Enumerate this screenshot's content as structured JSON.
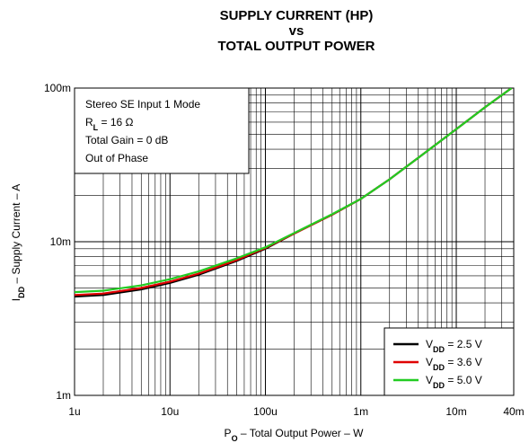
{
  "chart_data": {
    "type": "line",
    "title": [
      "SUPPLY CURRENT (HP)",
      "vs",
      "TOTAL OUTPUT POWER"
    ],
    "xlabel": [
      {
        "text": "P"
      },
      {
        "text": "O",
        "sub": true
      },
      {
        "text": " – Total Output Power – W"
      }
    ],
    "ylabel": [
      {
        "text": "I"
      },
      {
        "text": "DD",
        "sub": true
      },
      {
        "text": " – Supply Current – A"
      }
    ],
    "annotation": [
      [
        {
          "text": "Stereo SE Input 1 Mode"
        }
      ],
      [
        {
          "text": "R"
        },
        {
          "text": "L",
          "sub": true
        },
        {
          "text": " = 16 Ω"
        }
      ],
      [
        {
          "text": "Total Gain = 0 dB"
        }
      ],
      [
        {
          "text": "Out of Phase"
        }
      ]
    ],
    "xlog": true,
    "ylog": true,
    "grid": true,
    "minor_grid": true,
    "legend": "lower right",
    "xlim": [
      1e-06,
      0.04
    ],
    "ylim": [
      0.001,
      0.1
    ],
    "xticks": [
      {
        "value": 1e-06,
        "label": "1u"
      },
      {
        "value": 1e-05,
        "label": "10u"
      },
      {
        "value": 0.0001,
        "label": "100u"
      },
      {
        "value": 0.001,
        "label": "1m"
      },
      {
        "value": 0.01,
        "label": "10m"
      },
      {
        "value": 0.04,
        "label": "40m"
      }
    ],
    "yticks": [
      {
        "value": 0.001,
        "label": "1m"
      },
      {
        "value": 0.01,
        "label": "10m"
      },
      {
        "value": 0.1,
        "label": "100m"
      }
    ],
    "x": [
      1e-06,
      2e-06,
      5e-06,
      1e-05,
      2e-05,
      5e-05,
      0.0001,
      0.0002,
      0.0005,
      0.001,
      0.002,
      0.005,
      0.01,
      0.02,
      0.038
    ],
    "series": [
      {
        "name": [
          {
            "text": "V"
          },
          {
            "text": "DD",
            "sub": true
          },
          {
            "text": " = 2.5 V"
          }
        ],
        "color": "#000000",
        "values": [
          0.0044,
          0.0045,
          0.0049,
          0.0054,
          0.0061,
          0.0075,
          0.009,
          0.0113,
          0.015,
          0.019,
          0.0255,
          0.039,
          0.054,
          0.075,
          0.1
        ]
      },
      {
        "name": [
          {
            "text": "V"
          },
          {
            "text": "DD",
            "sub": true
          },
          {
            "text": " = 3.6 V"
          }
        ],
        "color": "#e00000",
        "values": [
          0.0045,
          0.0046,
          0.005,
          0.0055,
          0.0062,
          0.0076,
          0.0091,
          0.0113,
          0.015,
          0.019,
          0.0255,
          0.039,
          0.054,
          0.075,
          0.1
        ]
      },
      {
        "name": [
          {
            "text": "V"
          },
          {
            "text": "DD",
            "sub": true
          },
          {
            "text": " = 5.0 V"
          }
        ],
        "color": "#22cc22",
        "values": [
          0.0047,
          0.0048,
          0.0052,
          0.0057,
          0.0064,
          0.0078,
          0.0092,
          0.0114,
          0.0151,
          0.019,
          0.0255,
          0.039,
          0.054,
          0.075,
          0.1
        ]
      }
    ]
  }
}
